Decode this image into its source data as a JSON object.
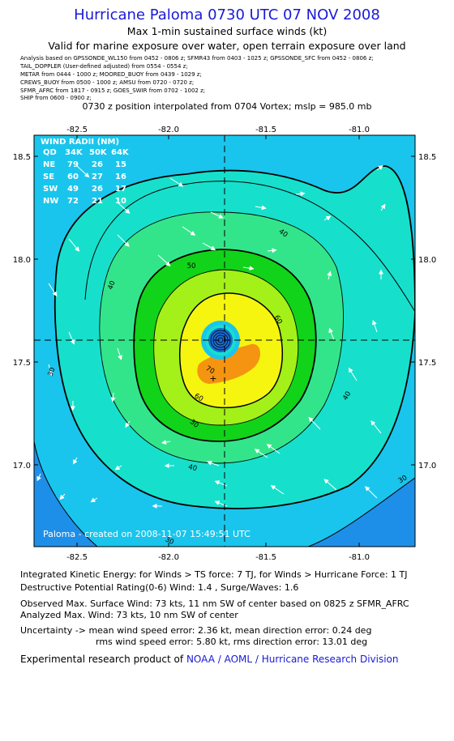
{
  "header": {
    "title": "Hurricane Paloma 0730 UTC 07 NOV 2008",
    "subtitle1": "Max 1-min sustained surface winds (kt)",
    "subtitle2": "Valid for marine exposure over water, open terrain exposure over land"
  },
  "analysis_sources": [
    "Analysis based on  GPSSONDE_WL150 from 0452 - 0806 z;  SFMR43 from 0403 - 1025 z;  GPSSONDE_SFC from 0452 - 0806 z;",
    "TAIL_DOPPLER (User-defined adjusted) from 0554 - 0554 z;",
    "METAR from 0444 - 1000 z;  MOORED_BUOY from 0439 - 1029 z;",
    "CREWS_BUOY from 0500 - 1000 z;  AMSU from 0720 - 0720 z;",
    "SFMR_AFRC from 1817 - 0915 z;  GOES_SWIR from 0702 - 1002 z;",
    "SHIP from 0600 - 0900 z;"
  ],
  "position_note": "0730 z position interpolated from 0704 Vortex; mslp = 985.0 mb",
  "chart_data": {
    "type": "contour",
    "x_ticks": [
      "-82.5",
      "-82.0",
      "-81.5",
      "-81.0"
    ],
    "y_ticks": [
      "18.5",
      "18.0",
      "17.5",
      "17.0"
    ],
    "xlim": [
      -82.7,
      -80.7
    ],
    "ylim": [
      16.6,
      18.6
    ],
    "center": {
      "lon": -81.7,
      "lat": 17.6
    },
    "max_wind_marker": {
      "lon": -81.78,
      "lat": 17.45
    },
    "contour_levels": [
      30,
      40,
      50,
      60,
      70
    ],
    "contour_labels": [
      "30",
      "30",
      "30",
      "40",
      "40",
      "40",
      "40",
      "50",
      "60",
      "60",
      "70",
      "30"
    ],
    "colors": {
      "band20": "#1e8fe8",
      "band30": "#19c5ec",
      "band40": "#16e0cc",
      "band50": "#33e58a",
      "band60": "#11d319",
      "band70": "#a4f019",
      "band80": "#f5f510",
      "band90": "#f59410",
      "eye": "#1a6ad0"
    },
    "wind_radii": {
      "title": "WIND RADII (NM)",
      "columns": [
        "QD",
        "34K",
        "50K",
        "64K"
      ],
      "rows": [
        [
          "NE",
          "79",
          "26",
          "15"
        ],
        [
          "SE",
          "60",
          "27",
          "16"
        ],
        [
          "SW",
          "49",
          "26",
          "17"
        ],
        [
          "NW",
          "72",
          "21",
          "10"
        ]
      ]
    },
    "credit": "Paloma - created on 2008-11-07 15:49:51 UTC"
  },
  "footer": {
    "ike": "Integrated Kinetic Energy:  for Winds > TS force: 7 TJ,  for Winds > Hurricane Force: 1 TJ",
    "dpr": "Destructive Potential Rating(0-6)   Wind: 1.4 , Surge/Waves: 1.6",
    "obs_max": "Observed Max. Surface Wind: 73 kts, 11 nm SW of center based on 0825 z SFMR_AFRC",
    "an_max": "Analyzed Max. Wind: 73 kts, 10 nm SW of center",
    "unc1": "Uncertainty -> mean wind speed error: 2.36 kt,   mean direction error: 0.24 deg",
    "unc2": "rms wind speed error: 5.80 kt,   rms direction error: 13.01 deg",
    "product_prefix": "Experimental research product of",
    "product_link": "NOAA / AOML / Hurricane Research Division"
  }
}
